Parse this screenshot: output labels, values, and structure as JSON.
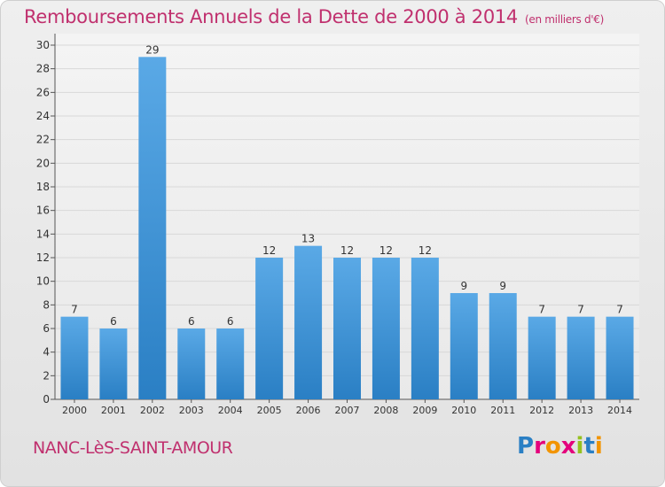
{
  "header": {
    "title": "Remboursements Annuels de la Dette de 2000 à 2014",
    "subtitle": "(en milliers d'€)"
  },
  "footer": {
    "commune": "NANC-LèS-SAINT-AMOUR",
    "logo_text": "Proxiti"
  },
  "colors": {
    "bar_top": "#5aa9e6",
    "bar_bottom": "#2a7fc4",
    "title": "#c0306e",
    "grid": "#d8d8d8"
  },
  "chart_data": {
    "type": "bar",
    "title": "Remboursements Annuels de la Dette de 2000 à 2014",
    "subtitle": "(en milliers d'€)",
    "categories": [
      "2000",
      "2001",
      "2002",
      "2003",
      "2004",
      "2005",
      "2006",
      "2007",
      "2008",
      "2009",
      "2010",
      "2011",
      "2012",
      "2013",
      "2014"
    ],
    "values": [
      7,
      6,
      29,
      6,
      6,
      12,
      13,
      12,
      12,
      12,
      9,
      9,
      7,
      7,
      7
    ],
    "ylim": [
      0,
      30
    ],
    "yticks": [
      0,
      2,
      4,
      6,
      8,
      10,
      12,
      14,
      16,
      18,
      20,
      22,
      24,
      26,
      28,
      30
    ],
    "grid": true,
    "data_labels": true
  }
}
